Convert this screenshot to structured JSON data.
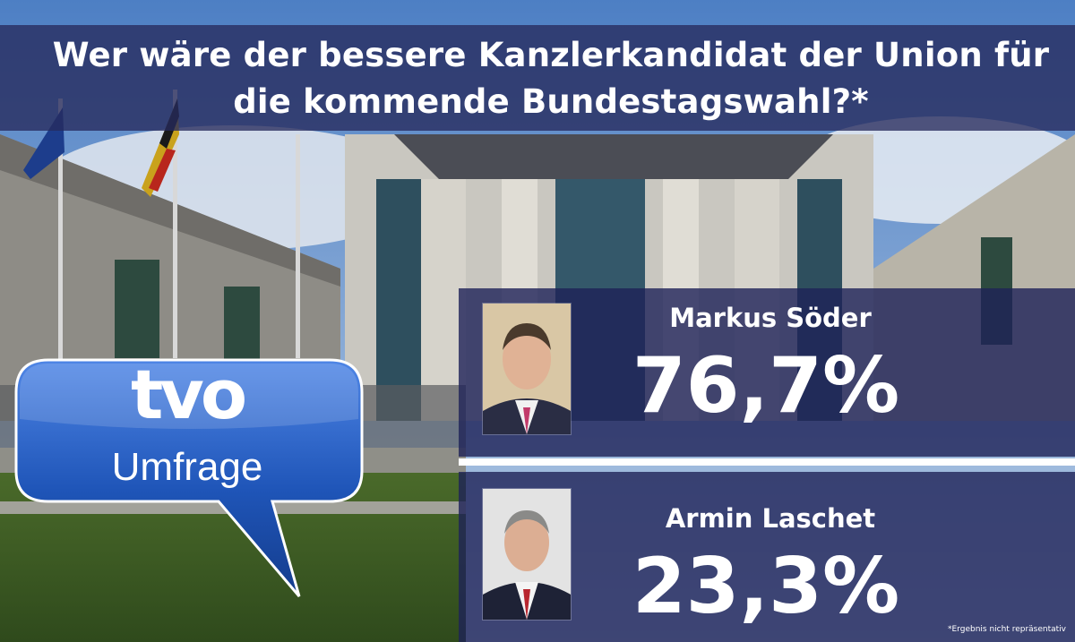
{
  "title_line1": "Wer wäre der bessere Kanzlerkandidat der Union für",
  "title_line2": "die kommende Bundestagswahl?*",
  "logo": {
    "brand": "tvo",
    "subtitle": "Umfrage"
  },
  "candidates": [
    {
      "name": "Markus Söder",
      "percent": "76,7%"
    },
    {
      "name": "Armin Laschet",
      "percent": "23,3%"
    }
  ],
  "footnote": "*Ergebnis nicht repräsentativ",
  "colors": {
    "panel": "#1e2258",
    "bubble": "#1f55b8",
    "title_band": "#262a5c"
  }
}
